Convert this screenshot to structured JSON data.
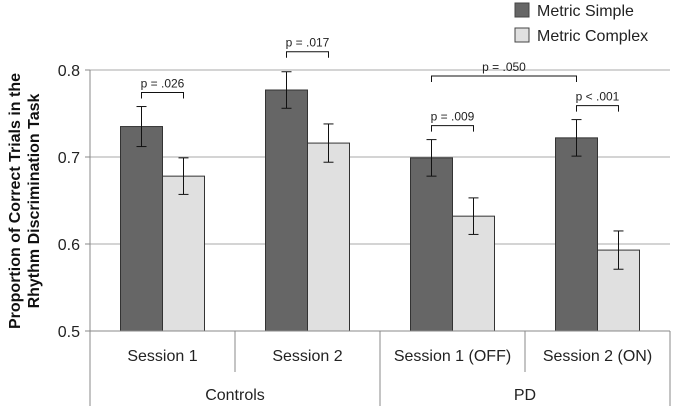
{
  "chart_data": {
    "type": "bar",
    "title": "",
    "ylabel_line1": "Proportion of Correct Trials in the",
    "ylabel_line2": "Rhythm Discrimination Task",
    "xlabel": "",
    "ylim": [
      0.5,
      0.8
    ],
    "yticks": [
      "0.5",
      "0.6",
      "0.7",
      "0.8"
    ],
    "grid": true,
    "legend_position": "top-right",
    "categories": [
      "Session 1",
      "Session 2",
      "Session 1 (OFF)",
      "Session 2 (ON)"
    ],
    "groups": [
      {
        "label": "Controls",
        "categories": [
          "Session 1",
          "Session 2"
        ]
      },
      {
        "label": "PD",
        "categories": [
          "Session 1 (OFF)",
          "Session 2 (ON)"
        ]
      }
    ],
    "series": [
      {
        "name": "Metric Simple",
        "color": "#666666",
        "values": [
          0.735,
          0.777,
          0.699,
          0.722
        ],
        "errors": [
          0.023,
          0.021,
          0.021,
          0.021
        ]
      },
      {
        "name": "Metric Complex",
        "color": "#e0e0e0",
        "values": [
          0.678,
          0.716,
          0.632,
          0.593
        ],
        "errors": [
          0.021,
          0.022,
          0.021,
          0.022
        ]
      }
    ],
    "annotations": [
      {
        "text": "p = .026",
        "type": "within",
        "category": 0
      },
      {
        "text": "p = .017",
        "type": "within",
        "category": 1
      },
      {
        "text": "p = .009",
        "type": "within",
        "category": 2
      },
      {
        "text": "p < .001",
        "type": "within",
        "category": 3
      },
      {
        "text": "p = .050",
        "type": "between",
        "from_category": 2,
        "to_category": 3
      }
    ]
  }
}
